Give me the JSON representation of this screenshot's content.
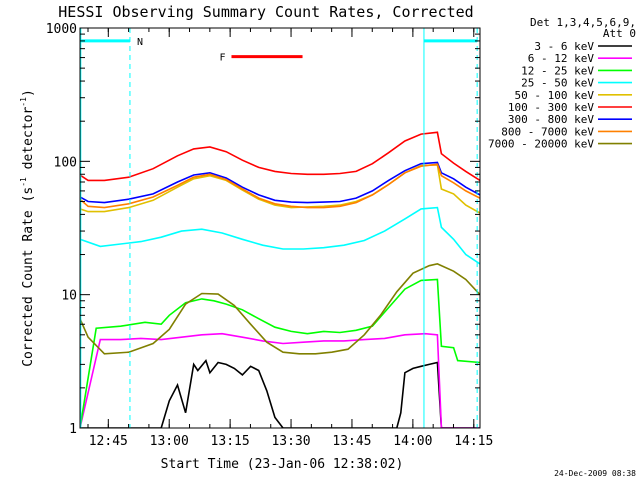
{
  "chart_data": {
    "type": "line",
    "title": "HESSI Observing Summary Count Rates, Corrected",
    "xlabel": "Start Time (23-Jan-06 12:38:02)",
    "ylabel_main": "Corrected Count Rate (s",
    "ylabel_exp1": "-1",
    "ylabel_mid": " detector",
    "ylabel_exp2": "-1",
    "ylabel_end": ")",
    "yscale": "log",
    "ylim": [
      1,
      1000
    ],
    "xlim": [
      "12:38:02",
      "14:16:30"
    ],
    "xlim_min": [
      0,
      98.5
    ],
    "ytick_labels": [
      "1",
      "10",
      "100",
      "1000"
    ],
    "ytick_values": [
      1,
      10,
      100,
      1000
    ],
    "xtick_labels": [
      "12:45",
      "13:00",
      "13:15",
      "13:30",
      "13:45",
      "14:00",
      "14:15"
    ],
    "xtick_values_min": [
      6.97,
      21.97,
      36.97,
      51.97,
      66.97,
      81.97,
      96.97
    ],
    "legend_header": [
      "Det 1,3,4,5,6,9,",
      "Att 0"
    ],
    "legend_placement": "right-outside",
    "series": [
      {
        "name": "3 - 6 keV",
        "color": "#000000",
        "points": [
          [
            0,
            1
          ],
          [
            20,
            1
          ],
          [
            22,
            1.6
          ],
          [
            24,
            2.1
          ],
          [
            26,
            1.3
          ],
          [
            28,
            3
          ],
          [
            29,
            2.7
          ],
          [
            31,
            3.2
          ],
          [
            32,
            2.6
          ],
          [
            34,
            3.1
          ],
          [
            36,
            3
          ],
          [
            38,
            2.8
          ],
          [
            40,
            2.5
          ],
          [
            42,
            2.9
          ],
          [
            44,
            2.7
          ],
          [
            46,
            1.9
          ],
          [
            48,
            1.2
          ],
          [
            50,
            1
          ],
          [
            78,
            1
          ],
          [
            79,
            1.3
          ],
          [
            80,
            2.6
          ],
          [
            82,
            2.8
          ],
          [
            84,
            2.9
          ],
          [
            86,
            3
          ],
          [
            88,
            3.1
          ],
          [
            89,
            1
          ],
          [
            98.5,
            1
          ]
        ]
      },
      {
        "name": "6 - 12 keV",
        "color": "#ff00ff",
        "points": [
          [
            0,
            1
          ],
          [
            5,
            4.6
          ],
          [
            10,
            4.6
          ],
          [
            15,
            4.7
          ],
          [
            20,
            4.6
          ],
          [
            25,
            4.8
          ],
          [
            30,
            5
          ],
          [
            35,
            5.1
          ],
          [
            40,
            4.8
          ],
          [
            45,
            4.5
          ],
          [
            50,
            4.3
          ],
          [
            55,
            4.4
          ],
          [
            60,
            4.5
          ],
          [
            65,
            4.5
          ],
          [
            70,
            4.6
          ],
          [
            75,
            4.7
          ],
          [
            80,
            5
          ],
          [
            85,
            5.1
          ],
          [
            88,
            5
          ],
          [
            89,
            1
          ],
          [
            98.5,
            1
          ]
        ]
      },
      {
        "name": "12 - 25 keV",
        "color": "#00ff00",
        "points": [
          [
            0,
            1
          ],
          [
            4,
            5.6
          ],
          [
            10,
            5.8
          ],
          [
            16,
            6.2
          ],
          [
            20,
            6
          ],
          [
            22,
            7
          ],
          [
            26,
            8.7
          ],
          [
            30,
            9.3
          ],
          [
            33,
            9
          ],
          [
            36,
            8.5
          ],
          [
            40,
            7.7
          ],
          [
            44,
            6.6
          ],
          [
            48,
            5.7
          ],
          [
            52,
            5.3
          ],
          [
            56,
            5.1
          ],
          [
            60,
            5.3
          ],
          [
            64,
            5.2
          ],
          [
            68,
            5.4
          ],
          [
            72,
            5.8
          ],
          [
            76,
            8
          ],
          [
            80,
            11
          ],
          [
            84,
            12.8
          ],
          [
            88,
            13
          ],
          [
            89,
            4.1
          ],
          [
            92,
            4
          ],
          [
            93,
            3.2
          ],
          [
            98.5,
            3.1
          ]
        ]
      },
      {
        "name": "25 - 50 keV",
        "color": "#00ffff",
        "points": [
          [
            0,
            26
          ],
          [
            5,
            23
          ],
          [
            10,
            24
          ],
          [
            15,
            25
          ],
          [
            20,
            27
          ],
          [
            25,
            30
          ],
          [
            30,
            31
          ],
          [
            35,
            29
          ],
          [
            40,
            26
          ],
          [
            45,
            23.5
          ],
          [
            50,
            22
          ],
          [
            55,
            22
          ],
          [
            60,
            22.5
          ],
          [
            65,
            23.5
          ],
          [
            70,
            25.5
          ],
          [
            75,
            30
          ],
          [
            80,
            37
          ],
          [
            84,
            44
          ],
          [
            88,
            45
          ],
          [
            89,
            32
          ],
          [
            92,
            26
          ],
          [
            95,
            20
          ],
          [
            98.5,
            17
          ]
        ]
      },
      {
        "name": "50 - 100 keV",
        "color": "#e0c000",
        "points": [
          [
            0,
            44
          ],
          [
            2,
            42
          ],
          [
            6,
            42
          ],
          [
            12,
            45
          ],
          [
            18,
            51
          ],
          [
            24,
            64
          ],
          [
            28,
            74
          ],
          [
            32,
            78
          ],
          [
            36,
            72
          ],
          [
            40,
            61
          ],
          [
            44,
            52
          ],
          [
            48,
            47
          ],
          [
            52,
            45
          ],
          [
            56,
            45.5
          ],
          [
            60,
            46
          ],
          [
            64,
            47
          ],
          [
            68,
            50
          ],
          [
            72,
            56
          ],
          [
            76,
            67
          ],
          [
            80,
            82
          ],
          [
            84,
            93
          ],
          [
            88,
            94
          ],
          [
            89,
            62
          ],
          [
            92,
            57
          ],
          [
            95,
            47
          ],
          [
            98.5,
            41
          ]
        ]
      },
      {
        "name": "100 - 300 keV",
        "color": "#ff0000",
        "points": [
          [
            0,
            79
          ],
          [
            2,
            72
          ],
          [
            6,
            72
          ],
          [
            12,
            76
          ],
          [
            18,
            88
          ],
          [
            24,
            110
          ],
          [
            28,
            124
          ],
          [
            32,
            128
          ],
          [
            36,
            118
          ],
          [
            40,
            102
          ],
          [
            44,
            90
          ],
          [
            48,
            84
          ],
          [
            52,
            81
          ],
          [
            56,
            80
          ],
          [
            60,
            80
          ],
          [
            64,
            81
          ],
          [
            68,
            84
          ],
          [
            72,
            96
          ],
          [
            76,
            116
          ],
          [
            80,
            142
          ],
          [
            84,
            160
          ],
          [
            88,
            165
          ],
          [
            89,
            114
          ],
          [
            92,
            97
          ],
          [
            95,
            84
          ],
          [
            98.5,
            72
          ]
        ]
      },
      {
        "name": "300 - 800 keV",
        "color": "#0000ff",
        "points": [
          [
            0,
            54
          ],
          [
            2,
            50
          ],
          [
            6,
            49
          ],
          [
            12,
            52
          ],
          [
            18,
            57
          ],
          [
            24,
            70
          ],
          [
            28,
            79
          ],
          [
            32,
            82
          ],
          [
            36,
            75
          ],
          [
            40,
            64
          ],
          [
            44,
            56
          ],
          [
            48,
            51
          ],
          [
            52,
            49.5
          ],
          [
            56,
            49
          ],
          [
            60,
            49.5
          ],
          [
            64,
            50
          ],
          [
            68,
            53
          ],
          [
            72,
            60
          ],
          [
            76,
            72
          ],
          [
            80,
            85
          ],
          [
            84,
            96
          ],
          [
            88,
            98
          ],
          [
            89,
            82
          ],
          [
            92,
            74
          ],
          [
            95,
            64
          ],
          [
            98.5,
            56
          ]
        ]
      },
      {
        "name": "800 - 7000 keV",
        "color": "#ff8000",
        "points": [
          [
            0,
            52
          ],
          [
            2,
            46
          ],
          [
            6,
            45
          ],
          [
            12,
            48
          ],
          [
            18,
            54
          ],
          [
            24,
            66
          ],
          [
            28,
            76
          ],
          [
            32,
            80
          ],
          [
            36,
            73
          ],
          [
            40,
            62
          ],
          [
            44,
            53
          ],
          [
            48,
            48
          ],
          [
            52,
            46
          ],
          [
            56,
            45
          ],
          [
            60,
            45
          ],
          [
            64,
            46
          ],
          [
            68,
            49
          ],
          [
            72,
            56
          ],
          [
            76,
            67
          ],
          [
            80,
            82
          ],
          [
            84,
            92
          ],
          [
            88,
            95
          ],
          [
            89,
            78
          ],
          [
            92,
            69
          ],
          [
            95,
            60
          ],
          [
            98.5,
            53
          ]
        ]
      },
      {
        "name": "7000 - 20000 keV",
        "color": "#808000",
        "points": [
          [
            0,
            6.6
          ],
          [
            2,
            4.8
          ],
          [
            6,
            3.6
          ],
          [
            12,
            3.7
          ],
          [
            18,
            4.3
          ],
          [
            22,
            5.5
          ],
          [
            26,
            8.5
          ],
          [
            30,
            10.2
          ],
          [
            34,
            10.1
          ],
          [
            38,
            8.3
          ],
          [
            42,
            6
          ],
          [
            46,
            4.4
          ],
          [
            50,
            3.7
          ],
          [
            54,
            3.6
          ],
          [
            58,
            3.6
          ],
          [
            62,
            3.7
          ],
          [
            66,
            3.9
          ],
          [
            70,
            5
          ],
          [
            74,
            7
          ],
          [
            78,
            10.5
          ],
          [
            82,
            14.5
          ],
          [
            86,
            16.5
          ],
          [
            88,
            17
          ],
          [
            92,
            15
          ],
          [
            95,
            13
          ],
          [
            98.5,
            10
          ]
        ]
      }
    ],
    "vertical_lines_min": [
      0.2,
      12.3,
      84.7,
      97.8
    ],
    "annotations": [
      {
        "label": "N",
        "color": "#00ffff",
        "segments": [
          [
            0.2,
            12.3
          ],
          [
            84.7,
            97.8
          ]
        ],
        "y": 800
      },
      {
        "label": "F",
        "color": "#ff0000",
        "segments": [
          [
            37.3,
            54.8
          ]
        ],
        "y": 610
      }
    ],
    "grid": false
  },
  "footer_date": "24-Dec-2009 08:38"
}
